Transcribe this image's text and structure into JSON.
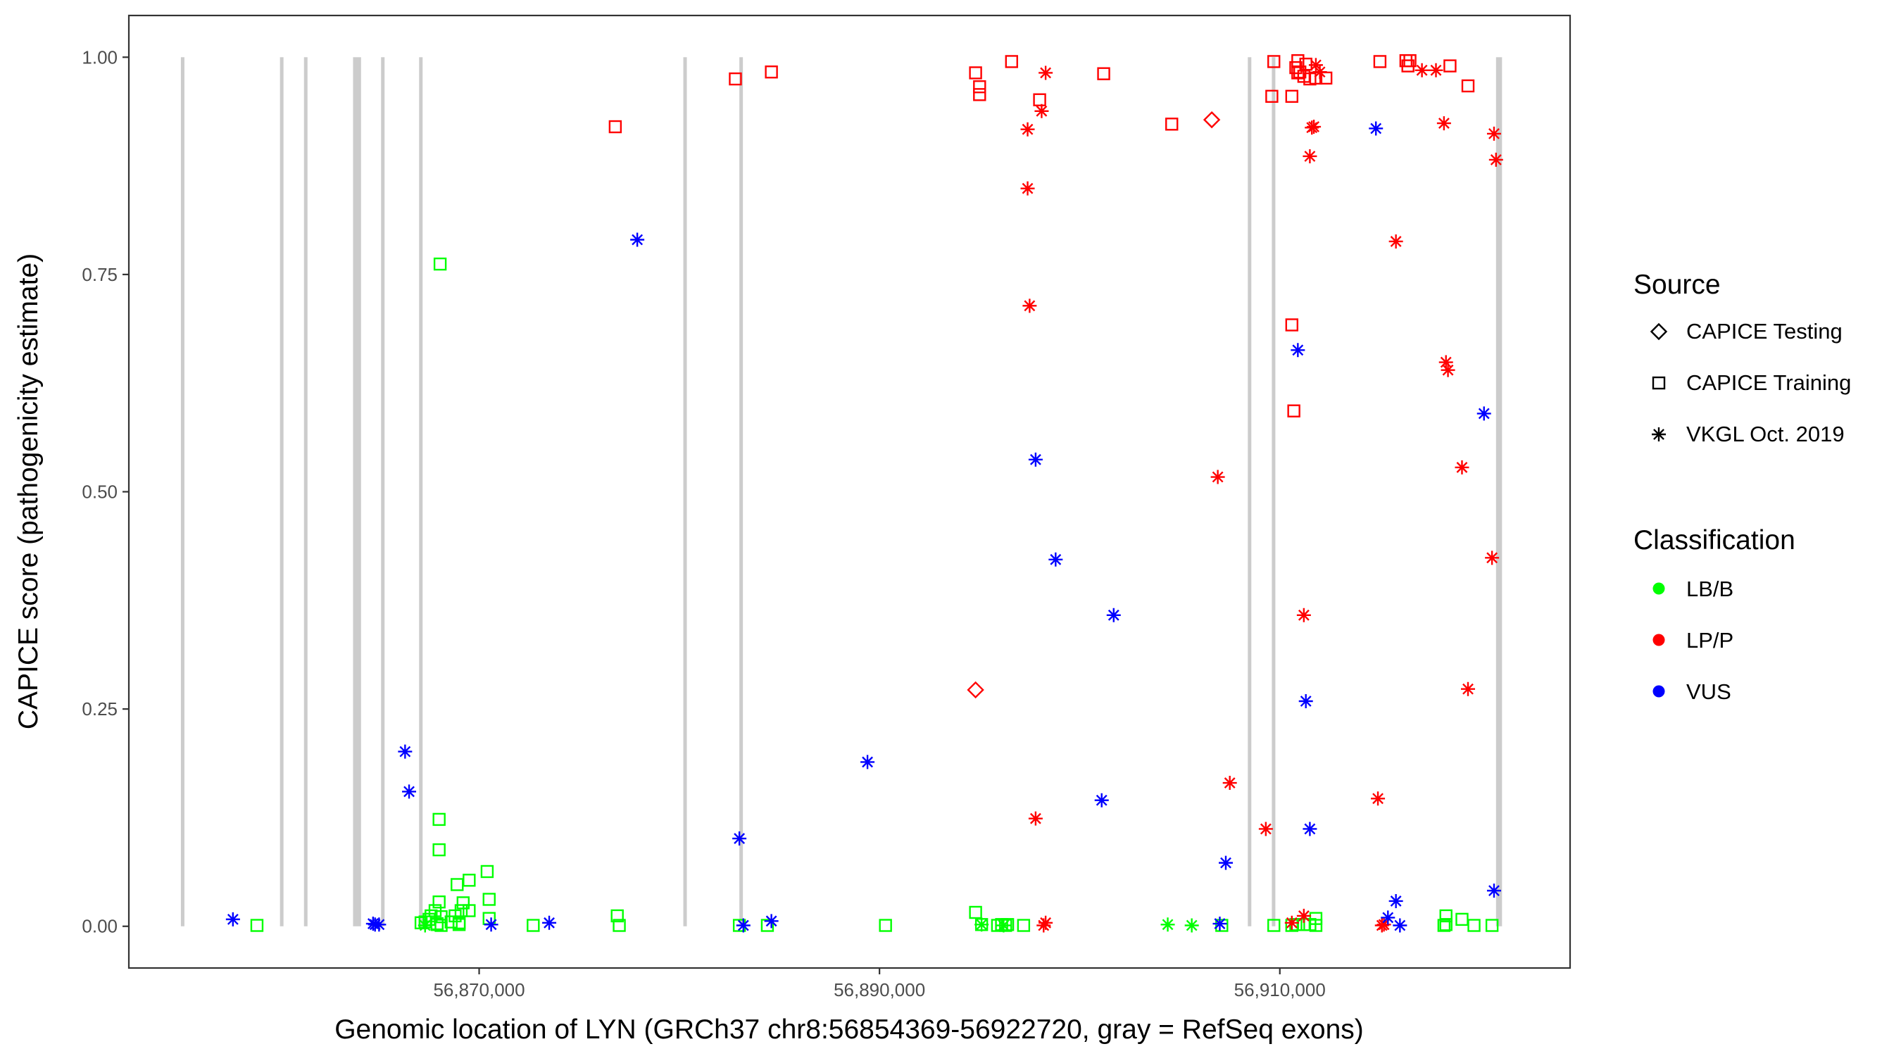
{
  "chart_data": {
    "type": "scatter",
    "xlabel": "Genomic location of LYN (GRCh37 chr8:56854369-56922720, gray = RefSeq exons)",
    "ylabel": "CAPICE score (pathogenicity estimate)",
    "xlim": [
      56852500,
      56924500
    ],
    "ylim": [
      -0.048,
      1.048
    ],
    "x_ticks": [
      56870000,
      56890000,
      56910000
    ],
    "x_tick_labels": [
      "56,870,000",
      "56,890,000",
      "56,910,000"
    ],
    "y_ticks": [
      0,
      0.25,
      0.5,
      0.75,
      1
    ],
    "y_tick_labels": [
      "0.00",
      "0.25",
      "0.50",
      "0.75",
      "1.00"
    ],
    "grid": false,
    "legend_placement": "right",
    "legend": {
      "source_title": "Source",
      "source_items": [
        {
          "label": "CAPICE Testing",
          "shape": "diamond"
        },
        {
          "label": "CAPICE Training",
          "shape": "square"
        },
        {
          "label": "VKGL Oct. 2019",
          "shape": "asterisk"
        }
      ],
      "class_title": "Classification",
      "class_items": [
        {
          "label": "LB/B",
          "color": "#00ff00"
        },
        {
          "label": "LP/P",
          "color": "#ff0000"
        },
        {
          "label": "VUS",
          "color": "#0000ff"
        }
      ]
    },
    "exon_color": "#cccccc",
    "exons": [
      [
        56855100,
        56855200
      ],
      [
        56860050,
        56860150
      ],
      [
        56861250,
        56861350
      ],
      [
        56863700,
        56864100
      ],
      [
        56865100,
        56865200
      ],
      [
        56867000,
        56867100
      ],
      [
        56880200,
        56880300
      ],
      [
        56883000,
        56883100
      ],
      [
        56908400,
        56908500
      ],
      [
        56909600,
        56909700
      ],
      [
        56920800,
        56921100
      ]
    ],
    "series": [
      {
        "source": "CAPICE Testing",
        "classification": "LP/P",
        "x": [
          56894800,
          56906600
        ],
        "y": [
          0.272,
          0.928
        ]
      },
      {
        "source": "CAPICE Training",
        "classification": "LB/B",
        "x": [
          56858900,
          56867100,
          56867300,
          56867500,
          56867600,
          56867800,
          56867900,
          56867900,
          56868000,
          56868000,
          56868000,
          56868050,
          56868100,
          56868100,
          56868600,
          56868800,
          56868900,
          56869000,
          56869000,
          56869100,
          56869200,
          56869500,
          56869500,
          56870400,
          56870500,
          56870500,
          56872700,
          56876900,
          56877000,
          56883000,
          56884400,
          56890300,
          56894800,
          56895100,
          56895900,
          56896100,
          56896300,
          56896400,
          56897200,
          56907100,
          56909700,
          56910600,
          56910800,
          56911200,
          56911500,
          56911800,
          56911800,
          56918200,
          56918300,
          56918300,
          56919100,
          56919700,
          56920600
        ],
        "y": [
          0.001,
          0.004,
          0.005,
          0.008,
          0.012,
          0.018,
          0.002,
          0.003,
          0.123,
          0.028,
          0.088,
          0.762,
          0.001,
          0.011,
          0.005,
          0.012,
          0.048,
          0.004,
          0.002,
          0.018,
          0.027,
          0.053,
          0.018,
          0.063,
          0.031,
          0.009,
          0.001,
          0.012,
          0.001,
          0.001,
          0.001,
          0.001,
          0.016,
          0.002,
          0.001,
          0.002,
          0.001,
          0.002,
          0.001,
          0.001,
          0.001,
          0.001,
          0.002,
          0.002,
          0.002,
          0.001,
          0.009,
          0.001,
          0.012,
          0.002,
          0.008,
          0.001,
          0.001
        ]
      },
      {
        "source": "CAPICE Training",
        "classification": "LP/P",
        "x": [
          56876800,
          56882800,
          56884600,
          56894800,
          56895000,
          56895000,
          56896600,
          56898000,
          56901200,
          56904600,
          56909600,
          56909700,
          56910600,
          56910600,
          56910700,
          56910800,
          56910900,
          56910900,
          56911000,
          56911200,
          56911300,
          56911500,
          56911800,
          56912300,
          56915000,
          56916300,
          56916400,
          56916500,
          56918500,
          56919400
        ],
        "y": [
          0.92,
          0.975,
          0.983,
          0.982,
          0.966,
          0.957,
          0.995,
          0.951,
          0.981,
          0.923,
          0.955,
          0.995,
          0.955,
          0.692,
          0.593,
          0.988,
          0.996,
          0.982,
          0.983,
          0.978,
          0.992,
          0.975,
          0.976,
          0.976,
          0.995,
          0.996,
          0.99,
          0.996,
          0.99,
          0.967
        ]
      },
      {
        "source": "VKGL Oct. 2019",
        "classification": "LB/B",
        "x": [
          56867300,
          56895100,
          56896200,
          56904400,
          56905600
        ],
        "y": [
          0.001,
          0.002,
          0.001,
          0.002,
          0.001
        ]
      },
      {
        "source": "VKGL Oct. 2019",
        "classification": "LP/P",
        "x": [
          56897400,
          56897400,
          56897500,
          56897800,
          56898100,
          56898200,
          56898300,
          56898300,
          56906900,
          56907500,
          56909300,
          56910600,
          56911200,
          56911200,
          56911500,
          56911600,
          56911700,
          56911800,
          56912000,
          56914900,
          56915100,
          56915200,
          56915800,
          56917100,
          56917800,
          56918200,
          56918300,
          56918400,
          56919100,
          56919400,
          56920600,
          56920700,
          56920800
        ],
        "y": [
          0.917,
          0.849,
          0.714,
          0.124,
          0.938,
          0.001,
          0.004,
          0.982,
          0.517,
          0.165,
          0.112,
          0.004,
          0.358,
          0.012,
          0.886,
          0.919,
          0.92,
          0.991,
          0.983,
          0.147,
          0.001,
          0.002,
          0.788,
          0.985,
          0.985,
          0.924,
          0.649,
          0.64,
          0.528,
          0.273,
          0.424,
          0.912,
          0.882
        ]
      },
      {
        "source": "VKGL Oct. 2019",
        "classification": "VUS",
        "x": [
          56857700,
          56864700,
          56864800,
          56865000,
          56866300,
          56866500,
          56870600,
          56873500,
          56877900,
          56883000,
          56883200,
          56884600,
          56889400,
          56897800,
          56898800,
          56901100,
          56901700,
          56907000,
          56907300,
          56910900,
          56911300,
          56911500,
          56914800,
          56915400,
          56915800,
          56916000,
          56920200,
          56920700
        ],
        "y": [
          0.008,
          0.003,
          0.002,
          0.002,
          0.201,
          0.155,
          0.002,
          0.004,
          0.79,
          0.101,
          0.001,
          0.006,
          0.189,
          0.537,
          0.422,
          0.145,
          0.358,
          0.003,
          0.073,
          0.663,
          0.259,
          0.112,
          0.918,
          0.01,
          0.029,
          0.001,
          0.59,
          0.041
        ]
      }
    ]
  }
}
